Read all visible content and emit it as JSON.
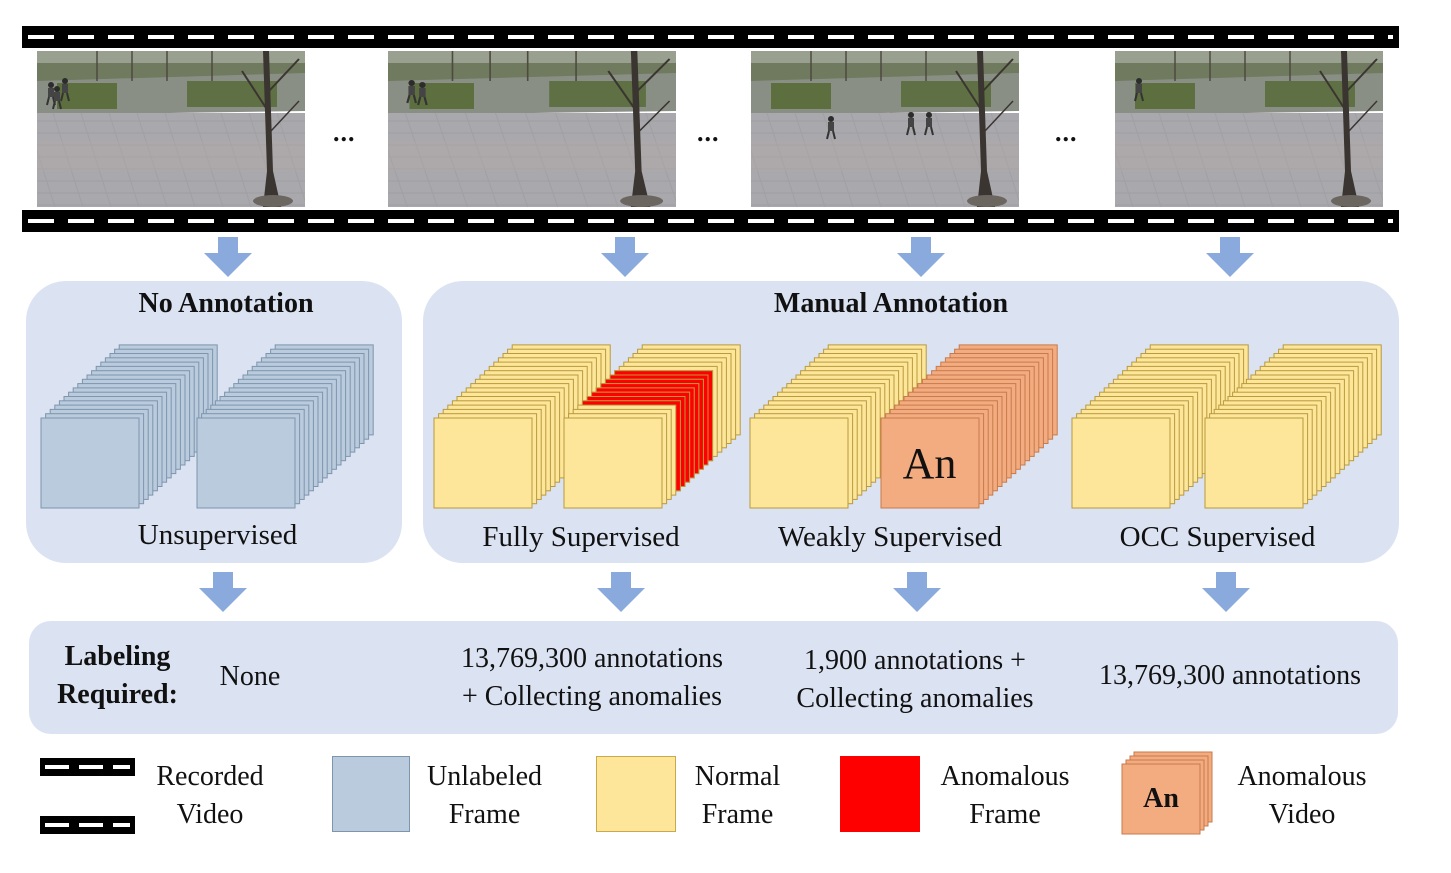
{
  "ellipsis": "...",
  "panels": {
    "no_annotation": {
      "title": "No Annotation",
      "method": "Unsupervised"
    },
    "manual_annotation": {
      "title": "Manual Annotation",
      "methods": [
        "Fully Supervised",
        "Weakly Supervised",
        "OCC Supervised"
      ]
    }
  },
  "anomalous_video_mark": "An",
  "labeling": {
    "heading_line1": "Labeling",
    "heading_line2": "Required:",
    "unsupervised": "None",
    "fully": [
      "13,769,300 annotations",
      "+ Collecting anomalies"
    ],
    "weakly": [
      "1,900 annotations +",
      "Collecting anomalies"
    ],
    "occ": "13,769,300 annotations"
  },
  "legend": {
    "recorded_video": [
      "Recorded",
      "Video"
    ],
    "unlabeled_frame": [
      "Unlabeled",
      "Frame"
    ],
    "normal_frame": [
      "Normal",
      "Frame"
    ],
    "anomalous_frame": [
      "Anomalous",
      "Frame"
    ],
    "anomalous_video": [
      "Anomalous",
      "Video"
    ],
    "anomalous_video_mark": "An"
  },
  "colors": {
    "panel_bg": "#dbe2f2",
    "arrow": "#8aa9dc",
    "unlabeled_frame": "#b9cbdc",
    "normal_frame": "#fde699",
    "anomalous_frame": "#ff0000",
    "anomalous_video": "#f3ac80"
  }
}
